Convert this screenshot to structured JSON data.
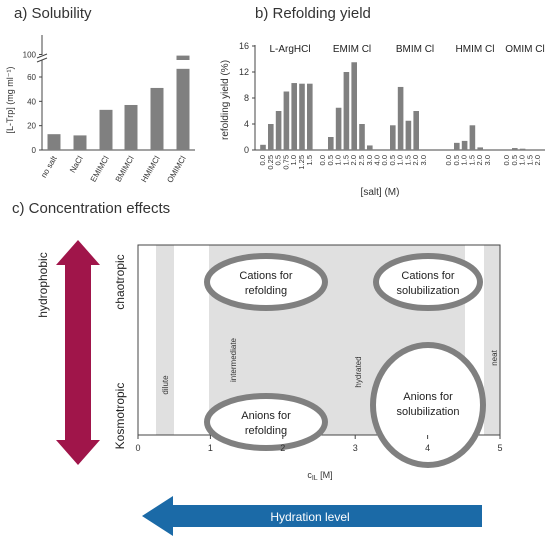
{
  "panel_a": {
    "title": "a) Solubility",
    "ylabel": "[L-Trp] (mg ml⁻¹)",
    "ticks_lower": [
      "0",
      "20",
      "40",
      "60"
    ],
    "ticks_upper": [
      "100"
    ],
    "categories": [
      "no salt",
      "NaCl",
      "EMIMCl",
      "BMIMCl",
      "HMIMCl",
      "OMIMCl"
    ]
  },
  "panel_b": {
    "title": "b) Refolding yield",
    "ylabel": "refolding yield (%)",
    "xlabel": "[salt] (M)",
    "yticks": [
      "0",
      "4",
      "8",
      "12",
      "16"
    ],
    "groups": [
      "L-ArgHCl",
      "EMIM Cl",
      "BMIM Cl",
      "HMIM Cl",
      "OMIM Cl"
    ]
  },
  "panel_c": {
    "title": "c) Concentration effects",
    "left_axis_top": "hydrophobic",
    "right_axis_top": "chaotropic",
    "right_axis_bottom": "Kosmotropic",
    "region_labels": [
      "dilute",
      "intermediate",
      "hydrated",
      "neat"
    ],
    "xticks": [
      "0",
      "1",
      "2",
      "3",
      "4",
      "5"
    ],
    "xlabel": "c_IL [M]",
    "ellipses": [
      "Cations for refolding",
      "Cations for solubilization",
      "Anions for refolding",
      "Anions for solubilization"
    ],
    "arrow_label": "Hydration level",
    "colors": {
      "vertical_arrow": "#a0154a",
      "hydration_arrow": "#1b6aa7",
      "bar": "#808080",
      "band": "#e0e0e0"
    }
  },
  "chart_data": [
    {
      "type": "bar",
      "title": "a) Solubility",
      "categories": [
        "no salt",
        "NaCl",
        "EMIMCl",
        "BMIMCl",
        "HMIMCl",
        "OMIMCl"
      ],
      "values": [
        13,
        12,
        33,
        37,
        51,
        98
      ],
      "ylabel": "[L-Trp] (mg ml⁻¹)",
      "ylim": [
        0,
        105
      ],
      "axis_break": [
        70,
        90
      ]
    },
    {
      "type": "bar",
      "title": "b) Refolding yield",
      "xlabel": "[salt] (M)",
      "ylabel": "refolding yield (%)",
      "ylim": [
        0,
        16
      ],
      "series": [
        {
          "name": "L-ArgHCl",
          "x": [
            "0.0",
            "0.25",
            "0.5",
            "0.75",
            "1.0",
            "1.25",
            "1.5"
          ],
          "values": [
            0.8,
            4,
            6,
            9,
            10.3,
            10.2,
            10.2
          ]
        },
        {
          "name": "EMIM Cl",
          "x": [
            "0.0",
            "0.5",
            "1.0",
            "1.5",
            "2.0",
            "2.5",
            "3.0",
            "4.0"
          ],
          "values": [
            0,
            2,
            6.5,
            12,
            13.5,
            4,
            0.7,
            0
          ]
        },
        {
          "name": "BMIM Cl",
          "x": [
            "0.0",
            "0.5",
            "1.0",
            "1.5",
            "2.0",
            "3.0"
          ],
          "values": [
            0,
            3.8,
            9.7,
            4.5,
            6,
            0
          ]
        },
        {
          "name": "HMIM Cl",
          "x": [
            "0.0",
            "0.5",
            "1.0",
            "1.5",
            "2.0",
            "3.0"
          ],
          "values": [
            0,
            1.1,
            1.4,
            3.8,
            0.4,
            0
          ]
        },
        {
          "name": "OMIM Cl",
          "x": [
            "0.0",
            "0.5",
            "1.0",
            "1.5",
            "2.0"
          ],
          "values": [
            0,
            0.3,
            0.2,
            0,
            0
          ]
        }
      ]
    }
  ]
}
